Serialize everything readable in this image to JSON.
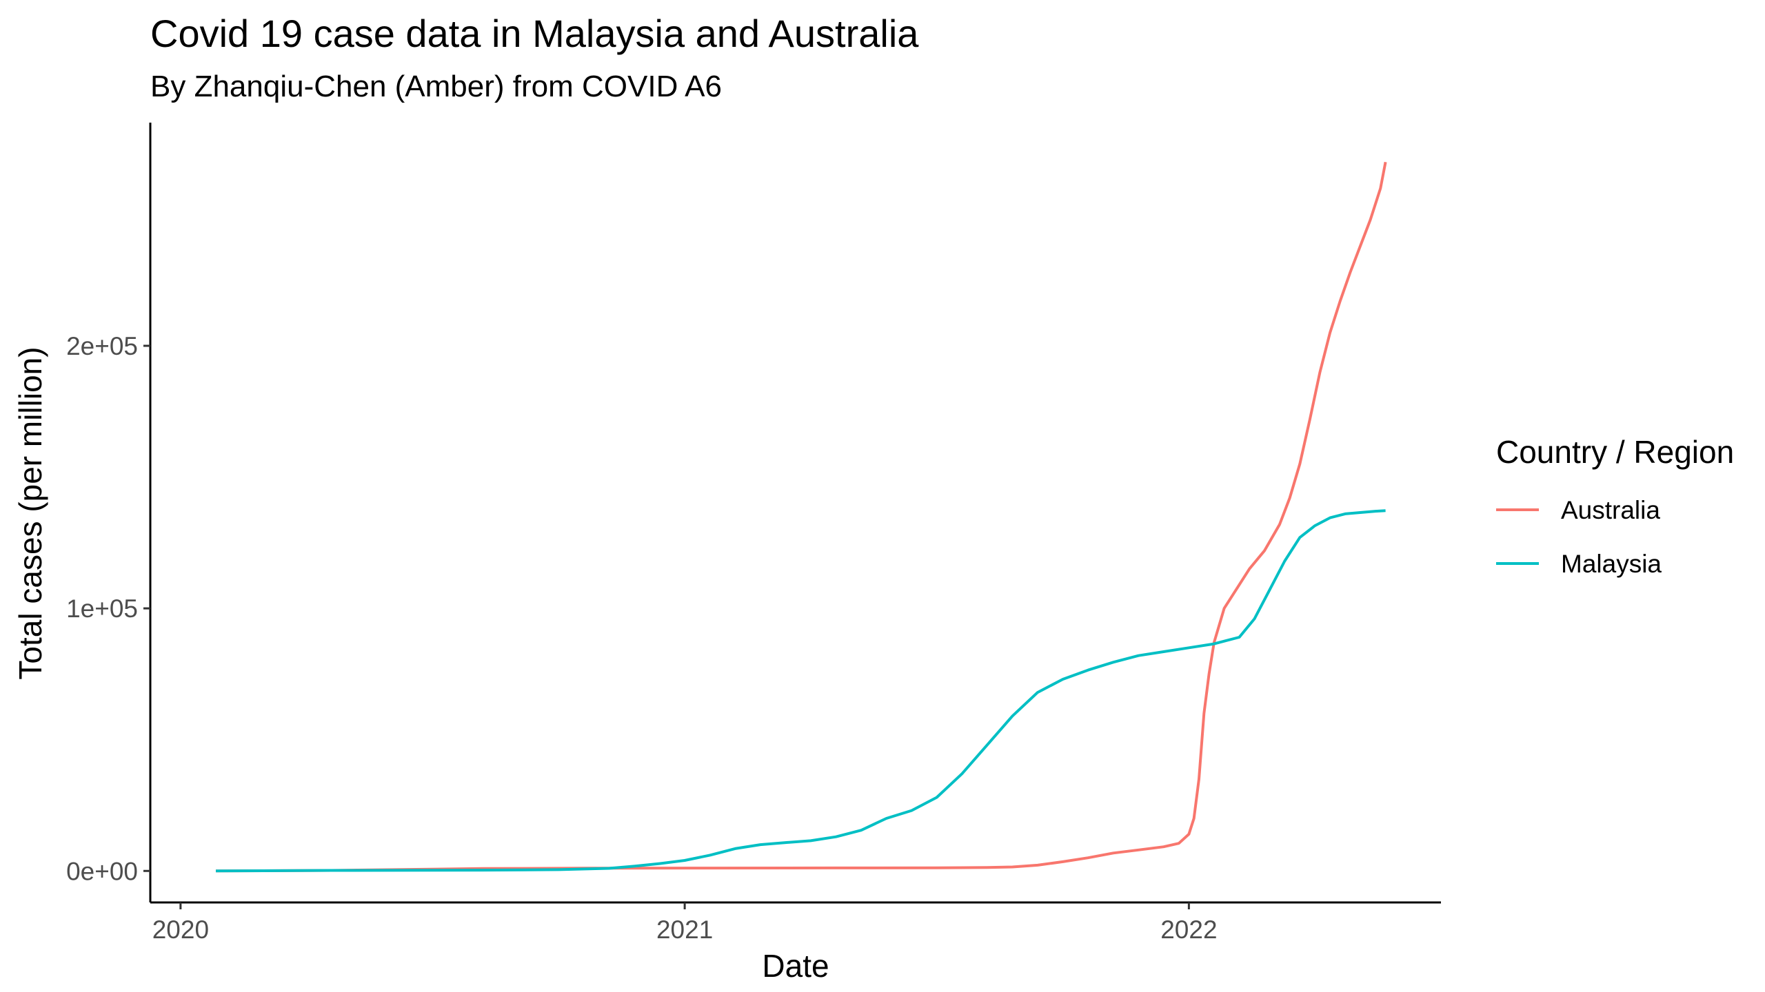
{
  "chart_data": {
    "type": "line",
    "title": "Covid 19 case data in Malaysia and Australia",
    "subtitle": "By Zhanqiu-Chen (Amber) from COVID A6",
    "xlabel": "Date",
    "ylabel": "Total cases (per million)",
    "x_ticks": [
      "2020",
      "2021",
      "2022"
    ],
    "y_ticks": [
      {
        "value": 0,
        "label": "0e+00"
      },
      {
        "value": 100000,
        "label": "1e+05"
      },
      {
        "value": 200000,
        "label": "2e+05"
      }
    ],
    "xlim": [
      2019.94,
      2022.5
    ],
    "ylim": [
      -12000,
      285000
    ],
    "grid": false,
    "legend": {
      "title": "Country / Region",
      "position": "right"
    },
    "series": [
      {
        "name": "Australia",
        "color": "#F8766D",
        "points": [
          [
            2020.07,
            0
          ],
          [
            2020.3,
            200
          ],
          [
            2020.6,
            900
          ],
          [
            2020.8,
            1050
          ],
          [
            2021.0,
            1100
          ],
          [
            2021.3,
            1150
          ],
          [
            2021.5,
            1200
          ],
          [
            2021.6,
            1300
          ],
          [
            2021.65,
            1500
          ],
          [
            2021.7,
            2200
          ],
          [
            2021.75,
            3500
          ],
          [
            2021.8,
            5000
          ],
          [
            2021.85,
            6800
          ],
          [
            2021.9,
            8000
          ],
          [
            2021.95,
            9200
          ],
          [
            2021.98,
            10500
          ],
          [
            2022.0,
            14000
          ],
          [
            2022.01,
            20000
          ],
          [
            2022.02,
            35000
          ],
          [
            2022.03,
            60000
          ],
          [
            2022.04,
            75000
          ],
          [
            2022.05,
            87000
          ],
          [
            2022.07,
            100000
          ],
          [
            2022.1,
            109000
          ],
          [
            2022.12,
            115000
          ],
          [
            2022.15,
            122000
          ],
          [
            2022.18,
            132000
          ],
          [
            2022.2,
            142000
          ],
          [
            2022.22,
            155000
          ],
          [
            2022.24,
            172000
          ],
          [
            2022.26,
            190000
          ],
          [
            2022.28,
            205000
          ],
          [
            2022.3,
            217000
          ],
          [
            2022.32,
            228000
          ],
          [
            2022.34,
            238000
          ],
          [
            2022.36,
            248000
          ],
          [
            2022.38,
            260000
          ],
          [
            2022.39,
            270000
          ]
        ]
      },
      {
        "name": "Malaysia",
        "color": "#00BFC4",
        "points": [
          [
            2020.07,
            0
          ],
          [
            2020.3,
            200
          ],
          [
            2020.6,
            300
          ],
          [
            2020.75,
            500
          ],
          [
            2020.85,
            1000
          ],
          [
            2020.9,
            1800
          ],
          [
            2020.95,
            2800
          ],
          [
            2021.0,
            4000
          ],
          [
            2021.05,
            6000
          ],
          [
            2021.1,
            8500
          ],
          [
            2021.15,
            10000
          ],
          [
            2021.2,
            10800
          ],
          [
            2021.25,
            11500
          ],
          [
            2021.3,
            13000
          ],
          [
            2021.35,
            15500
          ],
          [
            2021.4,
            20000
          ],
          [
            2021.45,
            23000
          ],
          [
            2021.5,
            28000
          ],
          [
            2021.55,
            37000
          ],
          [
            2021.6,
            48000
          ],
          [
            2021.65,
            59000
          ],
          [
            2021.7,
            68000
          ],
          [
            2021.75,
            73000
          ],
          [
            2021.8,
            76500
          ],
          [
            2021.85,
            79500
          ],
          [
            2021.9,
            82000
          ],
          [
            2021.95,
            83500
          ],
          [
            2022.0,
            85000
          ],
          [
            2022.05,
            86500
          ],
          [
            2022.1,
            89000
          ],
          [
            2022.13,
            96000
          ],
          [
            2022.16,
            107000
          ],
          [
            2022.19,
            118000
          ],
          [
            2022.22,
            127000
          ],
          [
            2022.25,
            131500
          ],
          [
            2022.28,
            134500
          ],
          [
            2022.31,
            136000
          ],
          [
            2022.34,
            136500
          ],
          [
            2022.37,
            137000
          ],
          [
            2022.39,
            137200
          ]
        ]
      }
    ]
  }
}
